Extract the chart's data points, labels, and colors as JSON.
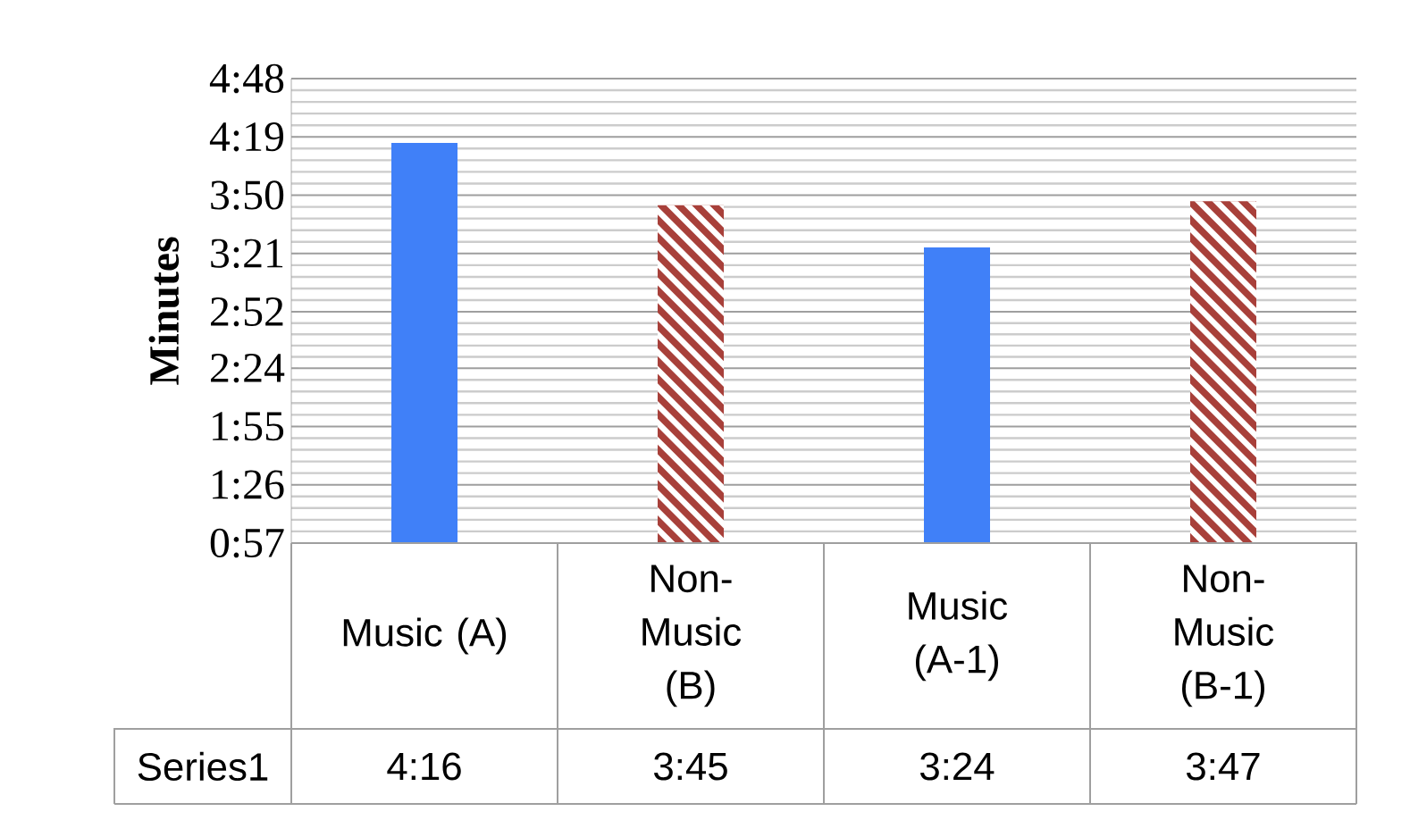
{
  "chart_data": {
    "type": "bar",
    "ylabel": "Minutes",
    "categories": [
      "Music (A)",
      "Non-Music (B)",
      "Music (A-1)",
      "Non-Music (B-1)"
    ],
    "series": [
      {
        "name": "Series1",
        "values": [
          256,
          225,
          204,
          227
        ],
        "colors": [
          "#4080f8",
          "#a8403a",
          "#4080f8",
          "#a8403a"
        ],
        "value_labels": [
          "4:16",
          "3:45",
          "3:24",
          "3:47"
        ]
      }
    ],
    "ylim": [
      57,
      288
    ],
    "yticks": [
      {
        "value": 57,
        "label": "0:57"
      },
      {
        "value": 86,
        "label": "1:26"
      },
      {
        "value": 115,
        "label": "1:55"
      },
      {
        "value": 144,
        "label": "2:24"
      },
      {
        "value": 172,
        "label": "2:52"
      },
      {
        "value": 201,
        "label": "3:21"
      },
      {
        "value": 230,
        "label": "3:50"
      },
      {
        "value": 259,
        "label": "4:19"
      },
      {
        "value": 288,
        "label": "4:48"
      }
    ],
    "grid": true
  }
}
